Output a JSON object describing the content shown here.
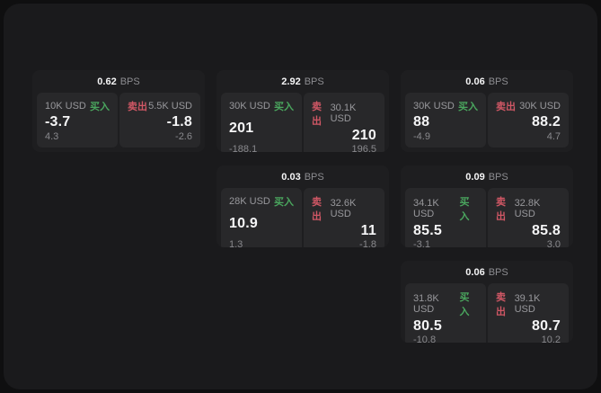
{
  "labels": {
    "buy": "买入",
    "sell": "卖出",
    "bps_unit": "BPS"
  },
  "colors": {
    "page_bg": "#0f0f10",
    "surface_bg": "#1a1a1c",
    "card_bg": "#1e1e20",
    "panel_bg": "#28282a",
    "buy_green": "#4aa65e",
    "sell_red": "#d05765",
    "value_white": "#f5f5f6",
    "muted_gray": "#8d8d91"
  },
  "cards": [
    {
      "bps": "0.62",
      "buy": {
        "size": "10K USD",
        "price": "-3.7",
        "change": "4.3"
      },
      "sell": {
        "size": "5.5K USD",
        "price": "-1.8",
        "change": "-2.6"
      }
    },
    {
      "bps": "2.92",
      "buy": {
        "size": "30K USD",
        "price": "201",
        "change": "-188.1"
      },
      "sell": {
        "size": "30.1K USD",
        "price": "210",
        "change": "196.5"
      }
    },
    {
      "bps": "0.06",
      "buy": {
        "size": "30K USD",
        "price": "88",
        "change": "-4.9"
      },
      "sell": {
        "size": "30K USD",
        "price": "88.2",
        "change": "4.7"
      }
    },
    {
      "bps": "0.03",
      "buy": {
        "size": "28K USD",
        "price": "10.9",
        "change": "1.3"
      },
      "sell": {
        "size": "32.6K USD",
        "price": "11",
        "change": "-1.8"
      }
    },
    {
      "bps": "0.09",
      "buy": {
        "size": "34.1K USD",
        "price": "85.5",
        "change": "-3.1"
      },
      "sell": {
        "size": "32.8K USD",
        "price": "85.8",
        "change": "3.0"
      }
    },
    {
      "bps": "0.06",
      "buy": {
        "size": "31.8K USD",
        "price": "80.5",
        "change": "-10.8"
      },
      "sell": {
        "size": "39.1K USD",
        "price": "80.7",
        "change": "10.2"
      }
    }
  ]
}
